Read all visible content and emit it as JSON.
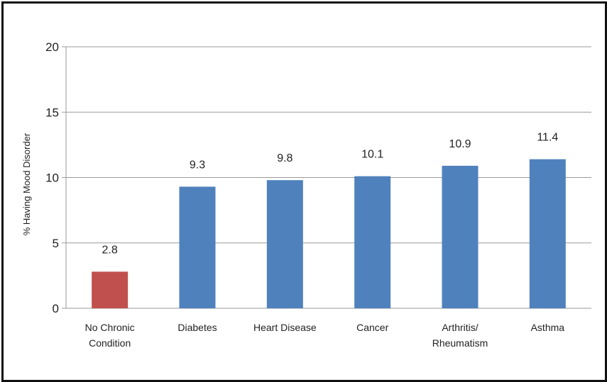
{
  "chart_data": {
    "type": "bar",
    "title": "",
    "xlabel": "",
    "ylabel": "% Having Mood Disorder",
    "ylim": [
      0,
      20
    ],
    "yticks": [
      0,
      5,
      10,
      15,
      20
    ],
    "grid": true,
    "categories": [
      [
        "No Chronic",
        "Condition"
      ],
      [
        "Diabetes"
      ],
      [
        "Heart Disease"
      ],
      [
        "Cancer"
      ],
      [
        "Arthritis/",
        "Rheumatism"
      ],
      [
        "Asthma"
      ]
    ],
    "values": [
      2.8,
      9.3,
      9.8,
      10.1,
      10.9,
      11.4
    ],
    "value_labels": [
      "2.8",
      "9.3",
      "9.8",
      "10.1",
      "10.9",
      "11.4"
    ],
    "colors": [
      "#c0504d",
      "#4f81bd",
      "#4f81bd",
      "#4f81bd",
      "#4f81bd",
      "#4f81bd"
    ]
  }
}
